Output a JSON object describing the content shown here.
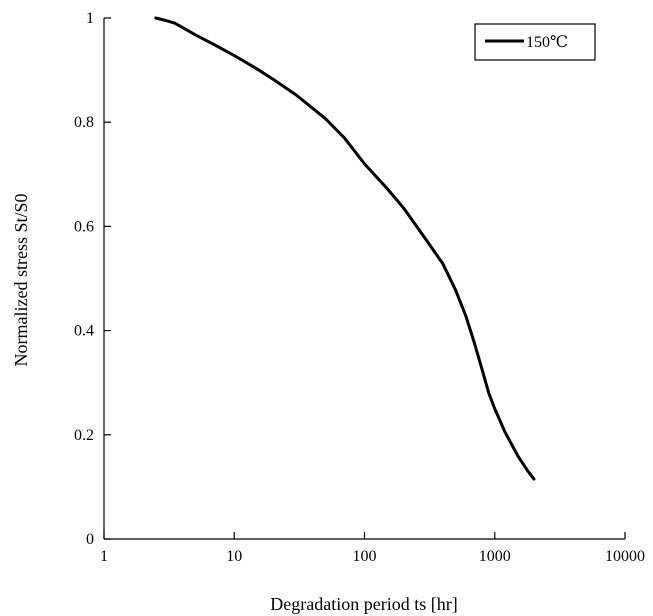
{
  "chart_data": {
    "type": "line",
    "title": "",
    "xlabel": "Degradation period ts  [hr]",
    "ylabel": "Normalized stress  St/S0",
    "xscale": "log",
    "xlim": [
      1,
      10000
    ],
    "ylim": [
      0,
      1
    ],
    "xticks": [
      1,
      10,
      100,
      1000,
      10000
    ],
    "xtick_labels": [
      "1",
      "10",
      "100",
      "1000",
      "10000"
    ],
    "yticks": [
      0,
      0.2,
      0.4,
      0.6,
      0.8,
      1
    ],
    "ytick_labels": [
      "0",
      "0.2",
      "0.4",
      "0.6",
      "0.8",
      "1"
    ],
    "grid": false,
    "legend_position": "top-right",
    "series": [
      {
        "name": "150℃",
        "color": "#000000",
        "x": [
          2.5,
          3.0,
          3.5,
          4,
          5,
          7,
          10,
          15,
          20,
          30,
          50,
          70,
          100,
          150,
          200,
          300,
          400,
          500,
          600,
          700,
          800,
          900,
          1000,
          1200,
          1500,
          1800,
          2000
        ],
        "y": [
          1.0,
          0.995,
          0.99,
          0.982,
          0.968,
          0.949,
          0.928,
          0.902,
          0.882,
          0.852,
          0.807,
          0.77,
          0.72,
          0.672,
          0.635,
          0.573,
          0.528,
          0.478,
          0.428,
          0.375,
          0.325,
          0.28,
          0.25,
          0.205,
          0.16,
          0.13,
          0.115
        ]
      }
    ]
  }
}
